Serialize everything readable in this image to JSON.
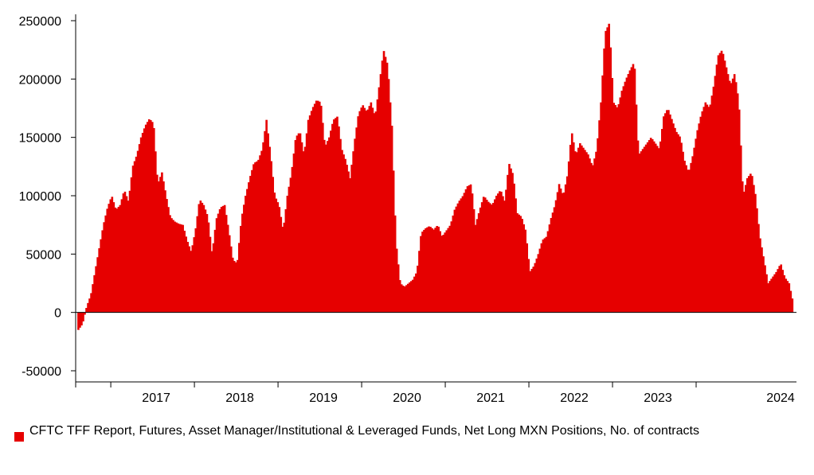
{
  "chart_data": {
    "type": "bar",
    "title": "",
    "xlabel": "",
    "ylabel": "",
    "ylim": [
      -50000,
      250000
    ],
    "y_ticks": [
      -50000,
      0,
      50000,
      100000,
      150000,
      200000,
      250000
    ],
    "year_labels": [
      "2017",
      "2018",
      "2019",
      "2020",
      "2021",
      "2022",
      "2023",
      "2024"
    ],
    "grid": false,
    "legend_position": "bottom-left",
    "series": [
      {
        "name": "CFTC TFF Report, Futures, Asset Manager/Institutional & Leveraged Funds, Net Long MXN Positions, No. of contracts",
        "color": "#e60000",
        "points": [
          [
            2016.6,
            -15000
          ],
          [
            2016.65,
            -10000
          ],
          [
            2016.7,
            5000
          ],
          [
            2016.75,
            15000
          ],
          [
            2016.8,
            35000
          ],
          [
            2016.85,
            55000
          ],
          [
            2016.9,
            75000
          ],
          [
            2016.95,
            90000
          ],
          [
            2017.0,
            100000
          ],
          [
            2017.05,
            88000
          ],
          [
            2017.1,
            92000
          ],
          [
            2017.15,
            105000
          ],
          [
            2017.2,
            95000
          ],
          [
            2017.25,
            125000
          ],
          [
            2017.3,
            135000
          ],
          [
            2017.35,
            150000
          ],
          [
            2017.4,
            160000
          ],
          [
            2017.45,
            166000
          ],
          [
            2017.5,
            162000
          ],
          [
            2017.55,
            110000
          ],
          [
            2017.6,
            120000
          ],
          [
            2017.65,
            100000
          ],
          [
            2017.7,
            82000
          ],
          [
            2017.75,
            78000
          ],
          [
            2017.8,
            76000
          ],
          [
            2017.85,
            75000
          ],
          [
            2017.9,
            62000
          ],
          [
            2017.95,
            52000
          ],
          [
            2018.0,
            70000
          ],
          [
            2018.05,
            97000
          ],
          [
            2018.1,
            92000
          ],
          [
            2018.15,
            82000
          ],
          [
            2018.2,
            50000
          ],
          [
            2018.25,
            80000
          ],
          [
            2018.3,
            90000
          ],
          [
            2018.35,
            92000
          ],
          [
            2018.4,
            70000
          ],
          [
            2018.45,
            45000
          ],
          [
            2018.5,
            42000
          ],
          [
            2018.55,
            80000
          ],
          [
            2018.6,
            100000
          ],
          [
            2018.65,
            115000
          ],
          [
            2018.7,
            128000
          ],
          [
            2018.75,
            130000
          ],
          [
            2018.8,
            140000
          ],
          [
            2018.85,
            165000
          ],
          [
            2018.9,
            135000
          ],
          [
            2018.95,
            100000
          ],
          [
            2019.0,
            92000
          ],
          [
            2019.05,
            70000
          ],
          [
            2019.1,
            100000
          ],
          [
            2019.15,
            120000
          ],
          [
            2019.2,
            150000
          ],
          [
            2019.25,
            155000
          ],
          [
            2019.3,
            135000
          ],
          [
            2019.35,
            165000
          ],
          [
            2019.4,
            175000
          ],
          [
            2019.45,
            182000
          ],
          [
            2019.5,
            180000
          ],
          [
            2019.55,
            142000
          ],
          [
            2019.6,
            150000
          ],
          [
            2019.65,
            165000
          ],
          [
            2019.7,
            168000
          ],
          [
            2019.75,
            140000
          ],
          [
            2019.8,
            130000
          ],
          [
            2019.85,
            115000
          ],
          [
            2019.9,
            145000
          ],
          [
            2019.95,
            170000
          ],
          [
            2020.0,
            178000
          ],
          [
            2020.05,
            172000
          ],
          [
            2020.1,
            180000
          ],
          [
            2020.15,
            168000
          ],
          [
            2020.2,
            195000
          ],
          [
            2020.25,
            225000
          ],
          [
            2020.3,
            212000
          ],
          [
            2020.35,
            160000
          ],
          [
            2020.4,
            60000
          ],
          [
            2020.45,
            25000
          ],
          [
            2020.5,
            22000
          ],
          [
            2020.55,
            25000
          ],
          [
            2020.6,
            28000
          ],
          [
            2020.65,
            35000
          ],
          [
            2020.7,
            68000
          ],
          [
            2020.75,
            72000
          ],
          [
            2020.8,
            74000
          ],
          [
            2020.85,
            71000
          ],
          [
            2020.9,
            75000
          ],
          [
            2020.95,
            65000
          ],
          [
            2021.0,
            70000
          ],
          [
            2021.05,
            75000
          ],
          [
            2021.1,
            88000
          ],
          [
            2021.15,
            95000
          ],
          [
            2021.2,
            100000
          ],
          [
            2021.25,
            108000
          ],
          [
            2021.3,
            110000
          ],
          [
            2021.35,
            75000
          ],
          [
            2021.4,
            88000
          ],
          [
            2021.45,
            100000
          ],
          [
            2021.5,
            95000
          ],
          [
            2021.55,
            92000
          ],
          [
            2021.6,
            100000
          ],
          [
            2021.65,
            105000
          ],
          [
            2021.7,
            95000
          ],
          [
            2021.75,
            128000
          ],
          [
            2021.8,
            118000
          ],
          [
            2021.85,
            85000
          ],
          [
            2021.9,
            82000
          ],
          [
            2021.95,
            70000
          ],
          [
            2022.0,
            35000
          ],
          [
            2022.05,
            40000
          ],
          [
            2022.1,
            50000
          ],
          [
            2022.15,
            62000
          ],
          [
            2022.2,
            65000
          ],
          [
            2022.25,
            80000
          ],
          [
            2022.3,
            92000
          ],
          [
            2022.35,
            110000
          ],
          [
            2022.4,
            100000
          ],
          [
            2022.45,
            118000
          ],
          [
            2022.5,
            155000
          ],
          [
            2022.55,
            135000
          ],
          [
            2022.6,
            145000
          ],
          [
            2022.65,
            140000
          ],
          [
            2022.7,
            135000
          ],
          [
            2022.75,
            125000
          ],
          [
            2022.8,
            140000
          ],
          [
            2022.85,
            180000
          ],
          [
            2022.9,
            240000
          ],
          [
            2022.95,
            248000
          ],
          [
            2023.0,
            180000
          ],
          [
            2023.05,
            175000
          ],
          [
            2023.1,
            190000
          ],
          [
            2023.15,
            200000
          ],
          [
            2023.2,
            208000
          ],
          [
            2023.25,
            215000
          ],
          [
            2023.3,
            135000
          ],
          [
            2023.35,
            140000
          ],
          [
            2023.4,
            145000
          ],
          [
            2023.45,
            150000
          ],
          [
            2023.5,
            145000
          ],
          [
            2023.55,
            140000
          ],
          [
            2023.6,
            168000
          ],
          [
            2023.65,
            175000
          ],
          [
            2023.7,
            165000
          ],
          [
            2023.75,
            155000
          ],
          [
            2023.8,
            150000
          ],
          [
            2023.85,
            130000
          ],
          [
            2023.9,
            120000
          ],
          [
            2023.95,
            135000
          ],
          [
            2024.0,
            155000
          ],
          [
            2024.05,
            170000
          ],
          [
            2024.1,
            180000
          ],
          [
            2024.15,
            175000
          ],
          [
            2024.2,
            195000
          ],
          [
            2024.25,
            220000
          ],
          [
            2024.3,
            225000
          ],
          [
            2024.35,
            210000
          ],
          [
            2024.4,
            195000
          ],
          [
            2024.45,
            205000
          ],
          [
            2024.5,
            180000
          ],
          [
            2024.55,
            100000
          ],
          [
            2024.6,
            115000
          ],
          [
            2024.65,
            120000
          ],
          [
            2024.7,
            100000
          ],
          [
            2024.75,
            65000
          ],
          [
            2024.8,
            45000
          ],
          [
            2024.85,
            25000
          ],
          [
            2024.9,
            30000
          ],
          [
            2024.95,
            35000
          ],
          [
            2025.0,
            42000
          ],
          [
            2025.05,
            30000
          ],
          [
            2025.1,
            25000
          ],
          [
            2025.15,
            8000
          ]
        ]
      }
    ]
  }
}
